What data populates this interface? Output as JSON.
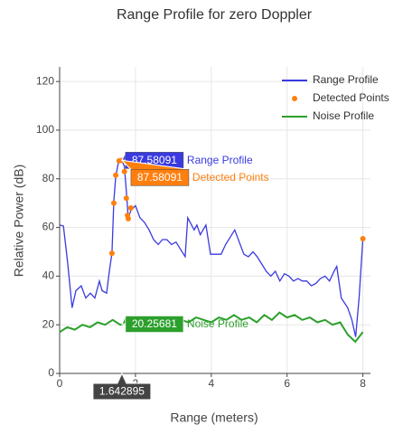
{
  "chart_data": {
    "type": "line",
    "title": "Range Profile for zero Doppler",
    "x_label": "Range (meters)",
    "y_label": "Relative Power (dB)",
    "xlim": [
      0,
      8.2
    ],
    "ylim": [
      0,
      126
    ],
    "xticks": [
      0,
      2,
      4,
      6,
      8
    ],
    "yticks": [
      0,
      20,
      40,
      60,
      80,
      100,
      120
    ],
    "grid": true,
    "legend": "top-right",
    "series": [
      {
        "name": "Range Profile",
        "color": "#3a3ae0",
        "mode": "lines",
        "x": [
          0,
          0.1,
          0.21,
          0.33,
          0.43,
          0.57,
          0.69,
          0.81,
          0.93,
          1.05,
          1.12,
          1.24,
          1.31,
          1.38,
          1.43,
          1.48,
          1.55,
          1.642895,
          1.71,
          1.76,
          1.81,
          1.88,
          2.0,
          2.12,
          2.24,
          2.36,
          2.48,
          2.6,
          2.71,
          2.83,
          2.95,
          3.07,
          3.19,
          3.31,
          3.38,
          3.48,
          3.55,
          3.62,
          3.71,
          3.86,
          3.98,
          4.14,
          4.26,
          4.38,
          4.5,
          4.62,
          4.74,
          4.86,
          4.98,
          5.1,
          5.21,
          5.33,
          5.45,
          5.57,
          5.69,
          5.81,
          5.93,
          6.05,
          6.17,
          6.29,
          6.4,
          6.52,
          6.64,
          6.76,
          6.88,
          7.0,
          7.12,
          7.24,
          7.31,
          7.43,
          7.6,
          7.71,
          7.81,
          7.9,
          8.0
        ],
        "values": [
          61,
          60.6,
          45.7,
          27,
          34,
          36,
          31,
          33,
          31,
          38,
          34,
          33,
          42,
          49.4,
          71,
          81,
          86.6,
          87.58091,
          85,
          75,
          64,
          67,
          69,
          64,
          62,
          59,
          55,
          53,
          55,
          55,
          53,
          54,
          51,
          48,
          64,
          61,
          59,
          61,
          57,
          61,
          49,
          49,
          49,
          53,
          56,
          59,
          54,
          49,
          48,
          50,
          48,
          45,
          42,
          40,
          42,
          38,
          41,
          40,
          38,
          39,
          38,
          38,
          36,
          37,
          39,
          40,
          38,
          42,
          44,
          31,
          27,
          22,
          15,
          31,
          55.4
        ]
      },
      {
        "name": "Detected Points",
        "color": "#ff7f0e",
        "mode": "markers",
        "x": [
          1.38,
          1.43,
          1.48,
          1.57,
          1.642895,
          1.71,
          1.76,
          1.79,
          1.81,
          1.88,
          8.0
        ],
        "values": [
          49.4,
          70,
          81.5,
          87.4,
          87.58091,
          83,
          72,
          65,
          63.6,
          68,
          55.4
        ]
      },
      {
        "name": "Noise Profile",
        "color": "#2ca02c",
        "mode": "lines",
        "x": [
          0,
          0.2,
          0.4,
          0.6,
          0.8,
          1.0,
          1.2,
          1.4,
          1.6,
          1.8,
          2.0,
          2.2,
          2.4,
          2.6,
          2.8,
          3.0,
          3.2,
          3.4,
          3.6,
          3.8,
          4.0,
          4.2,
          4.4,
          4.6,
          4.8,
          5.0,
          5.2,
          5.4,
          5.6,
          5.8,
          6.0,
          6.2,
          6.4,
          6.6,
          6.8,
          7.0,
          7.2,
          7.4,
          7.6,
          7.8,
          8.0
        ],
        "values": [
          17,
          19,
          18,
          20,
          19,
          21,
          20,
          22,
          20,
          21,
          22,
          20,
          23,
          21,
          22,
          20,
          22,
          21,
          23,
          22,
          21,
          23,
          22,
          24,
          22,
          23,
          21,
          24,
          22,
          25,
          23,
          24,
          22,
          23,
          21,
          22,
          20,
          21,
          16,
          13,
          17
        ]
      }
    ],
    "hover": {
      "x": 1.642895,
      "values": [
        87.58091,
        87.58091,
        20.25681
      ]
    }
  }
}
